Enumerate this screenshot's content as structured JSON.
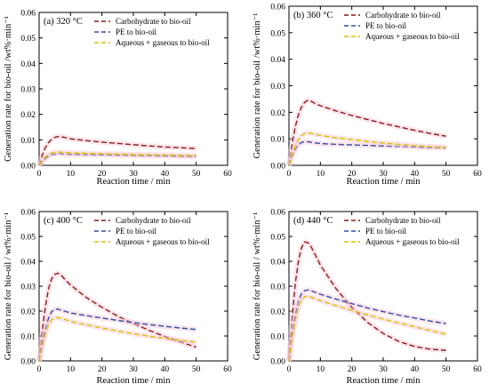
{
  "chart_data": [
    {
      "type": "line",
      "panel_label": "(a)  320 °C",
      "xlabel": "Reaction time / min",
      "ylabel": "Generation rate for bio-oil /wt%·min⁻¹",
      "xlim": [
        0,
        60
      ],
      "ylim": [
        0,
        0.06
      ],
      "xticks": [
        "0",
        "10",
        "20",
        "30",
        "40",
        "50",
        "60"
      ],
      "yticks": [
        "0.00",
        "0.01",
        "0.02",
        "0.03",
        "0.04",
        "0.05",
        "0.06"
      ],
      "legend_position": "top-right",
      "series": [
        {
          "name": "Carbohydrate to bio-oil",
          "color": "#8b1a1a",
          "x": [
            0,
            1,
            2,
            3,
            4,
            5,
            6,
            7,
            8,
            10,
            15,
            20,
            25,
            30,
            35,
            40,
            45,
            50
          ],
          "y": [
            0.0,
            0.004,
            0.007,
            0.009,
            0.0102,
            0.011,
            0.0113,
            0.0112,
            0.011,
            0.0104,
            0.0097,
            0.0091,
            0.0086,
            0.0081,
            0.0076,
            0.0072,
            0.0069,
            0.0066
          ]
        },
        {
          "name": "PE to bio-oil",
          "color": "#2e4fa8",
          "x": [
            0,
            1,
            2,
            3,
            4,
            5,
            6,
            7,
            8,
            10,
            15,
            20,
            25,
            30,
            35,
            40,
            45,
            50
          ],
          "y": [
            0.0,
            0.0015,
            0.0027,
            0.0036,
            0.0041,
            0.0044,
            0.0045,
            0.0045,
            0.0044,
            0.0043,
            0.0042,
            0.0041,
            0.004,
            0.0039,
            0.0038,
            0.0037,
            0.0036,
            0.0035
          ]
        },
        {
          "name": "Aqueous + gaseous to bio-oil",
          "color": "#d6c300",
          "x": [
            0,
            1,
            2,
            3,
            4,
            5,
            6,
            7,
            8,
            10,
            15,
            20,
            25,
            30,
            35,
            40,
            45,
            50
          ],
          "y": [
            0.0,
            0.002,
            0.0033,
            0.0042,
            0.0048,
            0.0051,
            0.0052,
            0.0051,
            0.005,
            0.0049,
            0.0047,
            0.0045,
            0.0044,
            0.0042,
            0.0041,
            0.004,
            0.0039,
            0.0038
          ]
        }
      ]
    },
    {
      "type": "line",
      "panel_label": "(b)  360 °C",
      "xlabel": "Reaction time / min",
      "ylabel": "Generation rate for bio-oil /wt%·min⁻¹",
      "xlim": [
        0,
        60
      ],
      "ylim": [
        0,
        0.06
      ],
      "xticks": [
        "0",
        "10",
        "20",
        "30",
        "40",
        "50",
        "60"
      ],
      "yticks": [
        "0.00",
        "0.01",
        "0.02",
        "0.03",
        "0.04",
        "0.05",
        "0.06"
      ],
      "legend_position": "top-right",
      "series": [
        {
          "name": "Carbohydrate to bio-oil",
          "color": "#8b1a1a",
          "x": [
            0,
            1,
            2,
            3,
            4,
            5,
            6,
            7,
            8,
            10,
            15,
            20,
            25,
            30,
            35,
            40,
            45,
            50
          ],
          "y": [
            0.0,
            0.008,
            0.0145,
            0.019,
            0.022,
            0.0238,
            0.0245,
            0.0242,
            0.0235,
            0.0225,
            0.0205,
            0.0188,
            0.0173,
            0.0158,
            0.0145,
            0.0132,
            0.012,
            0.011
          ]
        },
        {
          "name": "PE to bio-oil",
          "color": "#2e4fa8",
          "x": [
            0,
            1,
            2,
            3,
            4,
            5,
            6,
            7,
            8,
            10,
            15,
            20,
            25,
            30,
            35,
            40,
            45,
            50
          ],
          "y": [
            0.0,
            0.0035,
            0.006,
            0.0077,
            0.0086,
            0.009,
            0.0089,
            0.0087,
            0.0085,
            0.0082,
            0.0079,
            0.0077,
            0.0075,
            0.0073,
            0.0071,
            0.0069,
            0.0067,
            0.0066
          ]
        },
        {
          "name": "Aqueous + gaseous to bio-oil",
          "color": "#d6c300",
          "x": [
            0,
            1,
            2,
            3,
            4,
            5,
            6,
            7,
            8,
            10,
            15,
            20,
            25,
            30,
            35,
            40,
            45,
            50
          ],
          "y": [
            0.0,
            0.004,
            0.0075,
            0.0098,
            0.0112,
            0.012,
            0.0122,
            0.0121,
            0.0118,
            0.0113,
            0.0104,
            0.0097,
            0.009,
            0.0084,
            0.0079,
            0.0074,
            0.007,
            0.0067
          ]
        }
      ]
    },
    {
      "type": "line",
      "panel_label": "(c)  400 °C",
      "xlabel": "Reaction time / min",
      "ylabel": "Generation rate for bio-oil / wt%·min⁻¹",
      "xlim": [
        0,
        60
      ],
      "ylim": [
        0,
        0.06
      ],
      "xticks": [
        "0",
        "10",
        "20",
        "30",
        "40",
        "50",
        "60"
      ],
      "yticks": [
        "0.00",
        "0.01",
        "0.02",
        "0.03",
        "0.04",
        "0.05",
        "0.06"
      ],
      "legend_position": "top-right",
      "series": [
        {
          "name": "Carbohydrate to bio-oil",
          "color": "#8b1a1a",
          "x": [
            0,
            1,
            2,
            3,
            4,
            5,
            6,
            7,
            8,
            10,
            15,
            20,
            25,
            30,
            35,
            40,
            45,
            50
          ],
          "y": [
            0.0,
            0.012,
            0.022,
            0.029,
            0.033,
            0.0348,
            0.0352,
            0.0345,
            0.033,
            0.0305,
            0.0255,
            0.0215,
            0.018,
            0.015,
            0.0123,
            0.0098,
            0.0076,
            0.0055
          ]
        },
        {
          "name": "PE to bio-oil",
          "color": "#2e4fa8",
          "x": [
            0,
            1,
            2,
            3,
            4,
            5,
            6,
            7,
            8,
            10,
            15,
            20,
            25,
            30,
            35,
            40,
            45,
            50
          ],
          "y": [
            0.0,
            0.007,
            0.013,
            0.0172,
            0.0198,
            0.0208,
            0.0208,
            0.0204,
            0.02,
            0.0193,
            0.0182,
            0.0172,
            0.0163,
            0.0154,
            0.0146,
            0.0139,
            0.0132,
            0.0126
          ]
        },
        {
          "name": "Aqueous + gaseous to bio-oil",
          "color": "#d6c300",
          "x": [
            0,
            1,
            2,
            3,
            4,
            5,
            6,
            7,
            8,
            10,
            15,
            20,
            25,
            30,
            35,
            40,
            45,
            50
          ],
          "y": [
            0.0,
            0.006,
            0.011,
            0.0145,
            0.0165,
            0.0172,
            0.0174,
            0.0171,
            0.0167,
            0.0159,
            0.0145,
            0.0132,
            0.012,
            0.0109,
            0.0099,
            0.009,
            0.0082,
            0.0075
          ]
        }
      ]
    },
    {
      "type": "line",
      "panel_label": "(d)  440 °C",
      "xlabel": "Reaction time / min",
      "ylabel": "Generation rate for bio-oil / wt%·min⁻¹",
      "xlim": [
        0,
        60
      ],
      "ylim": [
        0,
        0.06
      ],
      "xticks": [
        "0",
        "10",
        "20",
        "30",
        "40",
        "50",
        "60"
      ],
      "yticks": [
        "0.00",
        "0.01",
        "0.02",
        "0.03",
        "0.04",
        "0.05",
        "0.06"
      ],
      "legend_position": "top-right",
      "series": [
        {
          "name": "Carbohydrate to bio-oil",
          "color": "#8b1a1a",
          "x": [
            0,
            1,
            2,
            3,
            4,
            5,
            6,
            7,
            8,
            10,
            15,
            20,
            25,
            30,
            35,
            40,
            45,
            50
          ],
          "y": [
            0.0,
            0.017,
            0.031,
            0.04,
            0.0455,
            0.0478,
            0.0475,
            0.046,
            0.0435,
            0.0385,
            0.029,
            0.0215,
            0.0155,
            0.011,
            0.0078,
            0.0058,
            0.0047,
            0.0042
          ]
        },
        {
          "name": "PE to bio-oil",
          "color": "#2e4fa8",
          "x": [
            0,
            1,
            2,
            3,
            4,
            5,
            6,
            7,
            8,
            10,
            15,
            20,
            25,
            30,
            35,
            40,
            45,
            50
          ],
          "y": [
            0.0,
            0.01,
            0.0185,
            0.024,
            0.027,
            0.0282,
            0.0285,
            0.0282,
            0.0277,
            0.0268,
            0.0248,
            0.023,
            0.0213,
            0.0198,
            0.0184,
            0.0172,
            0.016,
            0.015
          ]
        },
        {
          "name": "Aqueous + gaseous to bio-oil",
          "color": "#d6c300",
          "x": [
            0,
            1,
            2,
            3,
            4,
            5,
            6,
            7,
            8,
            10,
            15,
            20,
            25,
            30,
            35,
            40,
            45,
            50
          ],
          "y": [
            0.0,
            0.009,
            0.0165,
            0.0215,
            0.0245,
            0.0258,
            0.026,
            0.0256,
            0.0251,
            0.0242,
            0.0222,
            0.0203,
            0.0185,
            0.0168,
            0.0152,
            0.0137,
            0.0122,
            0.0107
          ]
        }
      ]
    }
  ]
}
